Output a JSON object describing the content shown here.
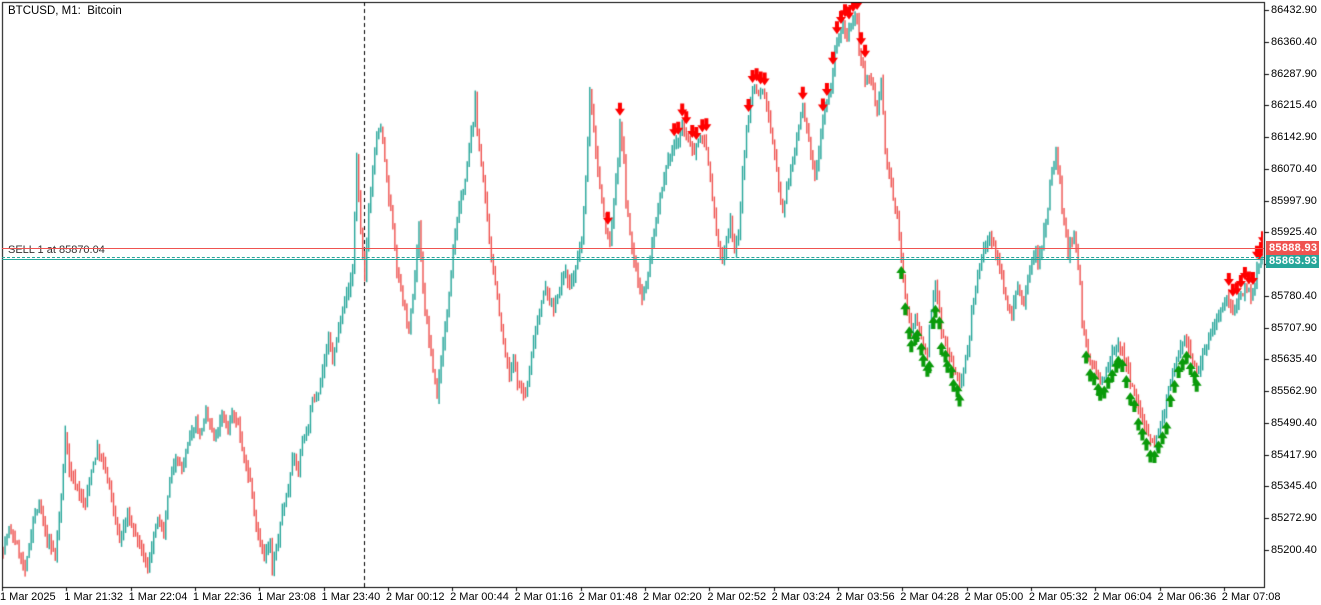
{
  "title": "BTCUSD, M1:  Bitcoin",
  "position_label": "SELL 1 at 85870.04",
  "price_axis": {
    "labels": [
      "86432.90",
      "86360.40",
      "86287.90",
      "86215.40",
      "86142.90",
      "86070.40",
      "85997.90",
      "85925.40",
      "85852.90",
      "85780.40",
      "85707.90",
      "85635.40",
      "85562.90",
      "85490.40",
      "85417.90",
      "85345.40",
      "85272.90",
      "85200.40"
    ],
    "ask_tag": {
      "text": "85888.93",
      "color": "#ef5350"
    },
    "bid_tag": {
      "text": "85863.93",
      "color": "#26a69a"
    }
  },
  "time_axis": {
    "labels": [
      "1 Mar 2025",
      "1 Mar 21:32",
      "1 Mar 22:04",
      "1 Mar 22:36",
      "1 Mar 23:08",
      "1 Mar 23:40",
      "2 Mar 00:12",
      "2 Mar 00:44",
      "2 Mar 01:16",
      "2 Mar 01:48",
      "2 Mar 02:20",
      "2 Mar 02:52",
      "2 Mar 03:24",
      "2 Mar 03:56",
      "2 Mar 04:28",
      "2 Mar 05:00",
      "2 Mar 05:32",
      "2 Mar 06:04",
      "2 Mar 06:36",
      "2 Mar 07:08"
    ],
    "minutes_per_label": 32
  },
  "chart_data": {
    "type": "candlestick",
    "symbol": "BTCUSD",
    "timeframe": "M1",
    "start_label": "1 Mar 2025 21:00",
    "candle_count": 628,
    "noise_seed": 7,
    "y_axis": {
      "price_at_plot_top": 86451.2,
      "price_at_plot_bottom": 85116.0
    },
    "lines": {
      "ask": 85888.93,
      "bid": 85863.93,
      "sell_position": 85870.04
    },
    "day_separator_minute": 180,
    "grid": false,
    "colors": {
      "up": "#26a69a",
      "down": "#ef5350",
      "ask_line": "#ef5350",
      "bid_line": "#26a69a",
      "position_line": "#26a69a",
      "sell_arrow": "#ff0000",
      "buy_arrow": "#0a9a0a",
      "separator": "#000000",
      "border": "#000000",
      "position_text": "#333333"
    },
    "price_path": [
      [
        0,
        85205
      ],
      [
        3,
        85246
      ],
      [
        7,
        85212
      ],
      [
        11,
        85150
      ],
      [
        15,
        85269
      ],
      [
        18,
        85303
      ],
      [
        22,
        85223
      ],
      [
        26,
        85189
      ],
      [
        29,
        85314
      ],
      [
        31,
        85474
      ],
      [
        33,
        85383
      ],
      [
        37,
        85342
      ],
      [
        41,
        85303
      ],
      [
        44,
        85383
      ],
      [
        47,
        85429
      ],
      [
        51,
        85383
      ],
      [
        54,
        85319
      ],
      [
        58,
        85223
      ],
      [
        62,
        85280
      ],
      [
        65,
        85246
      ],
      [
        68,
        85212
      ],
      [
        72,
        85155
      ],
      [
        74,
        85212
      ],
      [
        77,
        85269
      ],
      [
        80,
        85235
      ],
      [
        83,
        85360
      ],
      [
        86,
        85417
      ],
      [
        89,
        85383
      ],
      [
        92,
        85440
      ],
      [
        96,
        85497
      ],
      [
        98,
        85463
      ],
      [
        101,
        85508
      ],
      [
        103,
        85486
      ],
      [
        105,
        85451
      ],
      [
        109,
        85502
      ],
      [
        112,
        85479
      ],
      [
        114,
        85515
      ],
      [
        117,
        85486
      ],
      [
        120,
        85406
      ],
      [
        123,
        85360
      ],
      [
        125,
        85280
      ],
      [
        128,
        85223
      ],
      [
        130,
        85189
      ],
      [
        133,
        85212
      ],
      [
        134,
        85155
      ],
      [
        137,
        85223
      ],
      [
        139,
        85291
      ],
      [
        142,
        85337
      ],
      [
        144,
        85417
      ],
      [
        147,
        85383
      ],
      [
        149,
        85451
      ],
      [
        152,
        85486
      ],
      [
        154,
        85543
      ],
      [
        157,
        85565
      ],
      [
        159,
        85611
      ],
      [
        162,
        85680
      ],
      [
        164,
        85634
      ],
      [
        167,
        85702
      ],
      [
        169,
        85760
      ],
      [
        172,
        85794
      ],
      [
        174,
        85839
      ],
      [
        176,
        86090
      ],
      [
        178,
        85931
      ],
      [
        180,
        85816
      ],
      [
        182,
        85976
      ],
      [
        184,
        86068
      ],
      [
        186,
        86148
      ],
      [
        188,
        86164
      ],
      [
        190,
        86090
      ],
      [
        192,
        85999
      ],
      [
        194,
        85942
      ],
      [
        196,
        85839
      ],
      [
        198,
        85794
      ],
      [
        200,
        85748
      ],
      [
        202,
        85702
      ],
      [
        204,
        85771
      ],
      [
        206,
        85885
      ],
      [
        207,
        85942
      ],
      [
        208,
        85862
      ],
      [
        210,
        85748
      ],
      [
        212,
        85680
      ],
      [
        214,
        85611
      ],
      [
        216,
        85554
      ],
      [
        218,
        85634
      ],
      [
        220,
        85702
      ],
      [
        222,
        85794
      ],
      [
        224,
        85885
      ],
      [
        226,
        85953
      ],
      [
        228,
        85999
      ],
      [
        230,
        86045
      ],
      [
        232,
        86113
      ],
      [
        234,
        86182
      ],
      [
        235,
        86227
      ],
      [
        236,
        86159
      ],
      [
        238,
        86090
      ],
      [
        240,
        85999
      ],
      [
        242,
        85908
      ],
      [
        244,
        85839
      ],
      [
        246,
        85782
      ],
      [
        248,
        85702
      ],
      [
        250,
        85645
      ],
      [
        252,
        85600
      ],
      [
        254,
        85634
      ],
      [
        256,
        85588
      ],
      [
        258,
        85565
      ],
      [
        260,
        85554
      ],
      [
        262,
        85611
      ],
      [
        264,
        85680
      ],
      [
        266,
        85725
      ],
      [
        268,
        85771
      ],
      [
        270,
        85794
      ],
      [
        272,
        85771
      ],
      [
        274,
        85748
      ],
      [
        276,
        85782
      ],
      [
        278,
        85816
      ],
      [
        280,
        85839
      ],
      [
        282,
        85805
      ],
      [
        284,
        85828
      ],
      [
        286,
        85862
      ],
      [
        288,
        85908
      ],
      [
        290,
        86045
      ],
      [
        292,
        86239
      ],
      [
        294,
        86159
      ],
      [
        296,
        86068
      ],
      [
        298,
        85999
      ],
      [
        300,
        85931
      ],
      [
        302,
        85896
      ],
      [
        304,
        85999
      ],
      [
        306,
        86090
      ],
      [
        307,
        86170
      ],
      [
        309,
        86090
      ],
      [
        310,
        85999
      ],
      [
        312,
        85919
      ],
      [
        314,
        85862
      ],
      [
        316,
        85816
      ],
      [
        318,
        85782
      ],
      [
        320,
        85805
      ],
      [
        322,
        85862
      ],
      [
        324,
        85931
      ],
      [
        326,
        85976
      ],
      [
        328,
        86022
      ],
      [
        330,
        86068
      ],
      [
        332,
        86102
      ],
      [
        334,
        86125
      ],
      [
        336,
        86136
      ],
      [
        338,
        86170
      ],
      [
        340,
        86148
      ],
      [
        342,
        86125
      ],
      [
        344,
        86113
      ],
      [
        346,
        86136
      ],
      [
        348,
        86148
      ],
      [
        350,
        86113
      ],
      [
        352,
        86045
      ],
      [
        354,
        85965
      ],
      [
        356,
        85896
      ],
      [
        358,
        85862
      ],
      [
        360,
        85908
      ],
      [
        362,
        85953
      ],
      [
        364,
        85885
      ],
      [
        366,
        85919
      ],
      [
        368,
        86056
      ],
      [
        370,
        86159
      ],
      [
        372,
        86227
      ],
      [
        374,
        86262
      ],
      [
        376,
        86239
      ],
      [
        378,
        86250
      ],
      [
        380,
        86216
      ],
      [
        382,
        86159
      ],
      [
        384,
        86102
      ],
      [
        386,
        86033
      ],
      [
        388,
        85976
      ],
      [
        390,
        86022
      ],
      [
        392,
        86068
      ],
      [
        394,
        86113
      ],
      [
        396,
        86170
      ],
      [
        398,
        86205
      ],
      [
        400,
        86159
      ],
      [
        402,
        86102
      ],
      [
        404,
        86056
      ],
      [
        406,
        86113
      ],
      [
        408,
        86193
      ],
      [
        410,
        86227
      ],
      [
        412,
        86250
      ],
      [
        414,
        86341
      ],
      [
        416,
        86376
      ],
      [
        418,
        86392
      ],
      [
        420,
        86364
      ],
      [
        421,
        86387
      ],
      [
        423,
        86405
      ],
      [
        425,
        86415
      ],
      [
        426,
        86330
      ],
      [
        428,
        86296
      ],
      [
        429,
        86262
      ],
      [
        431,
        86284
      ],
      [
        433,
        86250
      ],
      [
        435,
        86205
      ],
      [
        437,
        86273
      ],
      [
        439,
        86113
      ],
      [
        440,
        86079
      ],
      [
        442,
        86033
      ],
      [
        443,
        85999
      ],
      [
        445,
        85965
      ],
      [
        446,
        85919
      ],
      [
        448,
        85816
      ],
      [
        449,
        85771
      ],
      [
        451,
        85725
      ],
      [
        452,
        85702
      ],
      [
        454,
        85737
      ],
      [
        455,
        85714
      ],
      [
        457,
        85691
      ],
      [
        458,
        85668
      ],
      [
        460,
        85645
      ],
      [
        461,
        85702
      ],
      [
        463,
        85782
      ],
      [
        464,
        85805
      ],
      [
        466,
        85748
      ],
      [
        467,
        85702
      ],
      [
        469,
        85668
      ],
      [
        470,
        85645
      ],
      [
        472,
        85634
      ],
      [
        473,
        85611
      ],
      [
        475,
        85593
      ],
      [
        476,
        85577
      ],
      [
        478,
        85611
      ],
      [
        479,
        85645
      ],
      [
        481,
        85680
      ],
      [
        482,
        85748
      ],
      [
        484,
        85794
      ],
      [
        485,
        85828
      ],
      [
        487,
        85862
      ],
      [
        488,
        85885
      ],
      [
        490,
        85908
      ],
      [
        491,
        85919
      ],
      [
        493,
        85896
      ],
      [
        494,
        85873
      ],
      [
        496,
        85851
      ],
      [
        497,
        85816
      ],
      [
        499,
        85782
      ],
      [
        500,
        85759
      ],
      [
        502,
        85737
      ],
      [
        503,
        85771
      ],
      [
        505,
        85805
      ],
      [
        506,
        85782
      ],
      [
        508,
        85759
      ],
      [
        509,
        85794
      ],
      [
        511,
        85828
      ],
      [
        512,
        85862
      ],
      [
        514,
        85885
      ],
      [
        515,
        85862
      ],
      [
        517,
        85896
      ],
      [
        518,
        85931
      ],
      [
        520,
        85976
      ],
      [
        521,
        86033
      ],
      [
        523,
        86090
      ],
      [
        524,
        86113
      ],
      [
        526,
        86033
      ],
      [
        527,
        85976
      ],
      [
        529,
        85919
      ],
      [
        530,
        85874
      ],
      [
        531,
        85896
      ],
      [
        533,
        85919
      ],
      [
        534,
        85885
      ],
      [
        536,
        85805
      ],
      [
        537,
        85725
      ],
      [
        539,
        85668
      ],
      [
        540,
        85645
      ],
      [
        542,
        85629
      ],
      [
        543,
        85611
      ],
      [
        545,
        85593
      ],
      [
        546,
        85581
      ],
      [
        548,
        85593
      ],
      [
        549,
        85616
      ],
      [
        551,
        85634
      ],
      [
        552,
        85652
      ],
      [
        554,
        85668
      ],
      [
        555,
        85675
      ],
      [
        557,
        85657
      ],
      [
        558,
        85629
      ],
      [
        560,
        85606
      ],
      [
        561,
        85583
      ],
      [
        563,
        85561
      ],
      [
        564,
        85538
      ],
      [
        566,
        85515
      ],
      [
        567,
        85497
      ],
      [
        569,
        85479
      ],
      [
        570,
        85463
      ],
      [
        572,
        85451
      ],
      [
        573,
        85444
      ],
      [
        575,
        85463
      ],
      [
        576,
        85486
      ],
      [
        578,
        85515
      ],
      [
        579,
        85547
      ],
      [
        581,
        85577
      ],
      [
        582,
        85606
      ],
      [
        584,
        85634
      ],
      [
        585,
        85661
      ],
      [
        587,
        85675
      ],
      [
        588,
        85684
      ],
      [
        590,
        85668
      ],
      [
        591,
        85645
      ],
      [
        593,
        85622
      ],
      [
        594,
        85611
      ],
      [
        596,
        85629
      ],
      [
        597,
        85652
      ],
      [
        599,
        85668
      ],
      [
        600,
        85684
      ],
      [
        602,
        85702
      ],
      [
        603,
        85721
      ],
      [
        605,
        85737
      ],
      [
        606,
        85753
      ],
      [
        608,
        85766
      ],
      [
        609,
        85775
      ],
      [
        611,
        85759
      ],
      [
        612,
        85748
      ],
      [
        614,
        85759
      ],
      [
        615,
        85775
      ],
      [
        617,
        85789
      ],
      [
        618,
        85805
      ],
      [
        620,
        85789
      ],
      [
        621,
        85775
      ],
      [
        623,
        85805
      ],
      [
        624,
        85844
      ],
      [
        626,
        85867
      ],
      [
        627,
        85880
      ]
    ],
    "sell_markers": [
      301,
      307,
      334,
      336,
      338,
      340,
      343,
      345,
      348,
      350,
      371,
      373,
      375,
      377,
      379,
      398,
      408,
      410,
      413,
      415,
      417,
      419,
      421,
      423,
      425,
      427,
      429,
      610,
      612,
      614,
      616,
      618,
      620,
      622,
      624,
      625,
      626,
      627
    ],
    "buy_markers": [
      447,
      449,
      451,
      452,
      454,
      455,
      457,
      458,
      460,
      461,
      463,
      464,
      466,
      467,
      469,
      470,
      472,
      473,
      475,
      476,
      539,
      541,
      543,
      545,
      546,
      548,
      550,
      552,
      554,
      555,
      557,
      559,
      561,
      563,
      565,
      567,
      569,
      571,
      573,
      575,
      577,
      579,
      581,
      583,
      585,
      587,
      589,
      591,
      593,
      594
    ]
  }
}
